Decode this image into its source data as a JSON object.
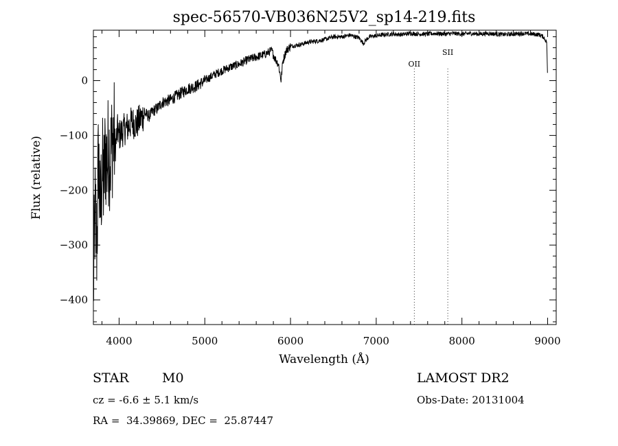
{
  "chart_data": {
    "type": "line",
    "title": "spec-56570-VB036N25V2_sp14-219.fits",
    "xlabel": "Wavelength (Å)",
    "ylabel": "Flux (relative)",
    "xlim": [
      3700,
      9100
    ],
    "ylim": [
      -445,
      92
    ],
    "x_ticks": [
      4000,
      5000,
      6000,
      7000,
      8000,
      9000
    ],
    "y_ticks": [
      0,
      -100,
      -200,
      -300,
      -400
    ],
    "grid": false,
    "series": [
      {
        "x": [
          3700,
          3720,
          3740,
          3760,
          3780,
          3800,
          3820,
          3840,
          3860,
          3880,
          3900,
          3920,
          3940,
          3960,
          3980,
          4000,
          4050,
          4100,
          4150,
          4200,
          4250,
          4300,
          4350,
          4400,
          4450,
          4500,
          4600,
          4700,
          4800,
          4900,
          5000,
          5100,
          5200,
          5300,
          5400,
          5500,
          5600,
          5700,
          5780,
          5820,
          5860,
          5890,
          5910,
          5950,
          6000,
          6100,
          6200,
          6300,
          6400,
          6500,
          6600,
          6700,
          6800,
          6850,
          6880,
          6920,
          7000,
          7100,
          7200,
          7300,
          7400,
          7500,
          7600,
          7700,
          7800,
          7900,
          8000,
          8100,
          8200,
          8300,
          8400,
          8500,
          8600,
          8700,
          8800,
          8900,
          8950,
          8990,
          9000
        ],
        "y": [
          -380,
          -240,
          -300,
          -130,
          -250,
          -160,
          -190,
          -130,
          -150,
          -120,
          -140,
          -110,
          -100,
          -120,
          -90,
          -100,
          -90,
          -85,
          -75,
          -80,
          -70,
          -60,
          -65,
          -55,
          -50,
          -40,
          -35,
          -25,
          -15,
          -10,
          0,
          10,
          18,
          25,
          30,
          38,
          43,
          48,
          55,
          40,
          30,
          0,
          35,
          55,
          63,
          65,
          70,
          72,
          75,
          80,
          80,
          83,
          78,
          68,
          74,
          80,
          82,
          84,
          85,
          84,
          86,
          85,
          85,
          86,
          85,
          86,
          85,
          86,
          85,
          86,
          85,
          84,
          85,
          86,
          85,
          84,
          80,
          70,
          0
        ]
      }
    ],
    "annotations": [
      {
        "label": "OII",
        "x": 7444,
        "style": "dotted"
      },
      {
        "label": "SII",
        "x": 7835,
        "style": "dotted"
      }
    ]
  },
  "info": {
    "object_class": "STAR",
    "subclass": "M0",
    "survey": "LAMOST DR2",
    "velocity": "cz = -6.6 ± 5.1 km/s",
    "obs_date": "Obs-Date: 20131004",
    "coords": "RA =  34.39869, DEC =  25.87447"
  }
}
